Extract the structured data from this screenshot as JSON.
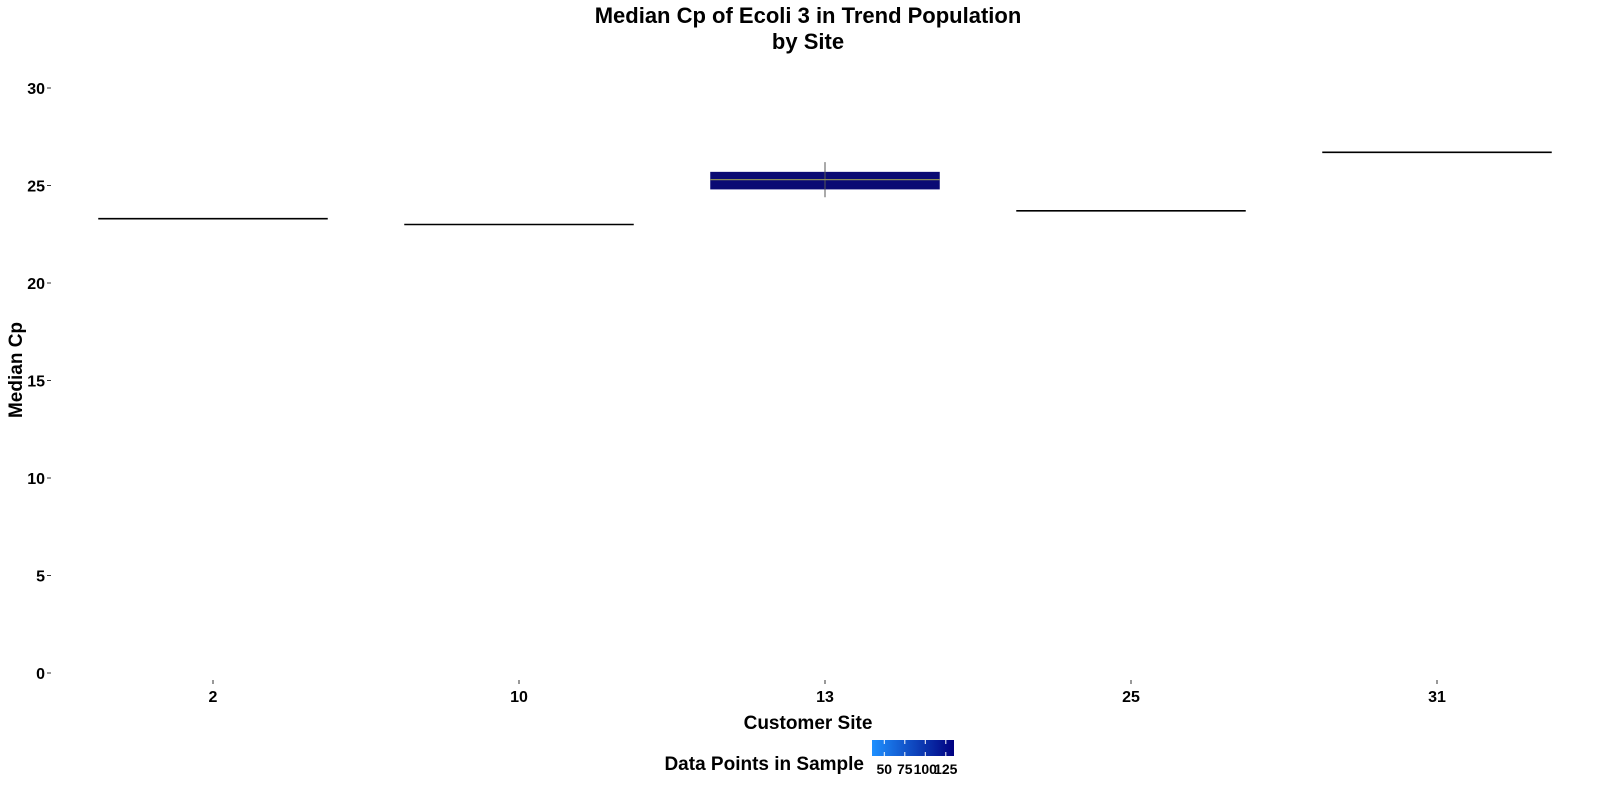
{
  "chart_data": {
    "type": "boxplot",
    "title_line1": "Median Cp of Ecoli 3 in Trend Population",
    "title_line2": "by Site",
    "xlabel": "Customer Site",
    "ylabel": "Median Cp",
    "ylim": [
      -1.5,
      31
    ],
    "yticks": [
      0,
      5,
      10,
      15,
      20,
      25,
      30
    ],
    "grid": false,
    "categories": [
      "2",
      "10",
      "13",
      "25",
      "31"
    ],
    "boxes": [
      {
        "site": "2",
        "median": 23.3,
        "q1": 23.3,
        "q3": 23.3,
        "whisker_low": 23.3,
        "whisker_high": 23.3,
        "count": 1
      },
      {
        "site": "10",
        "median": 23.0,
        "q1": 23.0,
        "q3": 23.0,
        "whisker_low": 23.0,
        "whisker_high": 23.0,
        "count": 1
      },
      {
        "site": "13",
        "median": 25.3,
        "q1": 24.8,
        "q3": 25.7,
        "whisker_low": 24.4,
        "whisker_high": 26.2,
        "count": 135
      },
      {
        "site": "25",
        "median": 23.7,
        "q1": 23.7,
        "q3": 23.7,
        "whisker_low": 23.7,
        "whisker_high": 23.7,
        "count": 1
      },
      {
        "site": "31",
        "median": 26.7,
        "q1": 26.7,
        "q3": 26.7,
        "whisker_low": 26.7,
        "whisker_high": 26.7,
        "count": 1
      }
    ],
    "legend": {
      "title": "Data Points in Sample",
      "position": "bottom",
      "ticks": [
        "50",
        "75",
        "100",
        "125"
      ],
      "tick_values": [
        50,
        75,
        100,
        125
      ],
      "range": [
        35,
        135
      ],
      "color_low": "#1e90ff",
      "color_high": "#000080"
    },
    "colors": {
      "box_fill": "#0a0a73",
      "median_line": "#8a8a5a",
      "whisker": "#555555",
      "flat_line": "#000000"
    }
  }
}
